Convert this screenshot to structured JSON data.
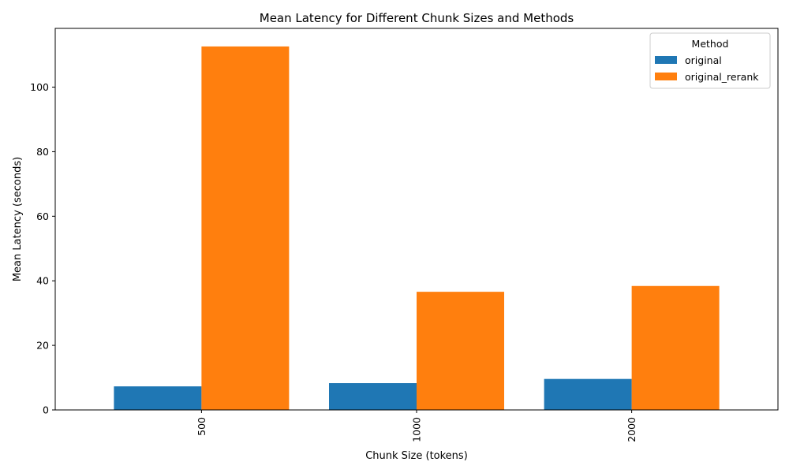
{
  "chart_data": {
    "type": "bar",
    "title": "Mean Latency for Different Chunk Sizes and Methods",
    "xlabel": "Chunk Size (tokens)",
    "ylabel": "Mean Latency (seconds)",
    "categories": [
      "500",
      "1000",
      "2000"
    ],
    "series": [
      {
        "name": "original",
        "values": [
          7.3,
          8.3,
          9.6
        ],
        "color": "#1f77b4"
      },
      {
        "name": "original_rerank",
        "values": [
          112.6,
          36.6,
          38.4
        ],
        "color": "#ff7f0e"
      }
    ],
    "ylim": [
      0,
      118.2
    ],
    "yticks": [
      0,
      20,
      40,
      60,
      80,
      100
    ],
    "legend": {
      "title": "Method",
      "position": "top-right"
    },
    "grid": false
  }
}
